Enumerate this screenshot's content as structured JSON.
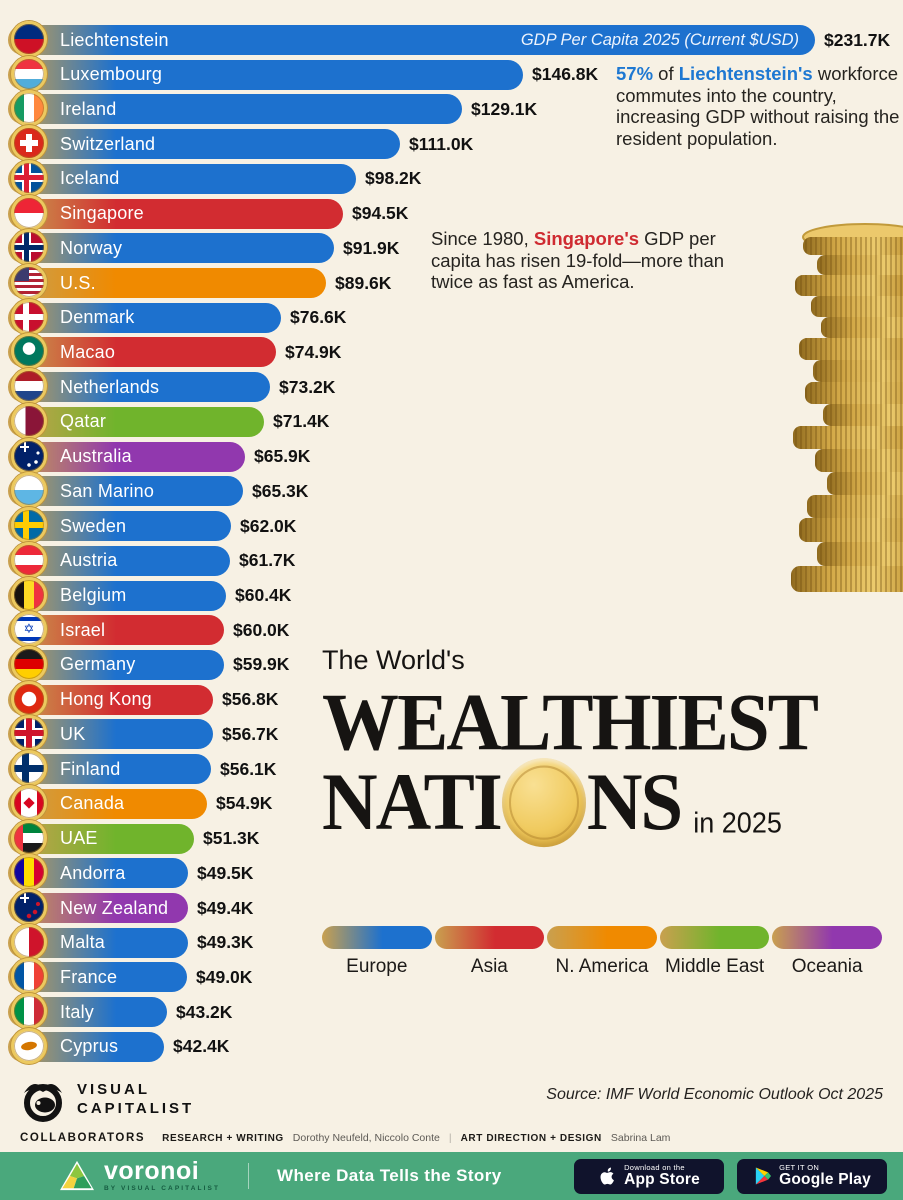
{
  "header": {
    "axis_label": "GDP Per Capita 2025 (Current $USD)"
  },
  "colors": {
    "europe": "#1d71ce",
    "asia": "#d22c31",
    "namerica": "#f08a00",
    "mideast": "#70b42c",
    "oceania": "#9138ae",
    "bar_gold": "#c9a04f",
    "accent_blue": "#1e78d2",
    "accent_red": "#cf2b31",
    "background": "#f7f1e4",
    "footer_green": "#4aa87c"
  },
  "chart_data": {
    "type": "bar",
    "title": "The World's Wealthiest Nations in 2025",
    "value_unit": "GDP per capita, thousand current USD",
    "max_value": 231.7,
    "legend_position": "bottom-right",
    "rows": [
      {
        "country": "Liechtenstein",
        "label": "$231.7K",
        "value": 231.7,
        "region": "europe",
        "flag": "li"
      },
      {
        "country": "Luxembourg",
        "label": "$146.8K",
        "value": 146.8,
        "region": "europe",
        "flag": "lu"
      },
      {
        "country": "Ireland",
        "label": "$129.1K",
        "value": 129.1,
        "region": "europe",
        "flag": "ie"
      },
      {
        "country": "Switzerland",
        "label": "$111.0K",
        "value": 111.0,
        "region": "europe",
        "flag": "ch"
      },
      {
        "country": "Iceland",
        "label": "$98.2K",
        "value": 98.2,
        "region": "europe",
        "flag": "is"
      },
      {
        "country": "Singapore",
        "label": "$94.5K",
        "value": 94.5,
        "region": "asia",
        "flag": "sg"
      },
      {
        "country": "Norway",
        "label": "$91.9K",
        "value": 91.9,
        "region": "europe",
        "flag": "no"
      },
      {
        "country": "U.S.",
        "label": "$89.6K",
        "value": 89.6,
        "region": "namerica",
        "flag": "us"
      },
      {
        "country": "Denmark",
        "label": "$76.6K",
        "value": 76.6,
        "region": "europe",
        "flag": "dk"
      },
      {
        "country": "Macao",
        "label": "$74.9K",
        "value": 74.9,
        "region": "asia",
        "flag": "mo"
      },
      {
        "country": "Netherlands",
        "label": "$73.2K",
        "value": 73.2,
        "region": "europe",
        "flag": "nl"
      },
      {
        "country": "Qatar",
        "label": "$71.4K",
        "value": 71.4,
        "region": "mideast",
        "flag": "qa"
      },
      {
        "country": "Australia",
        "label": "$65.9K",
        "value": 65.9,
        "region": "oceania",
        "flag": "au"
      },
      {
        "country": "San Marino",
        "label": "$65.3K",
        "value": 65.3,
        "region": "europe",
        "flag": "sm"
      },
      {
        "country": "Sweden",
        "label": "$62.0K",
        "value": 62.0,
        "region": "europe",
        "flag": "se"
      },
      {
        "country": "Austria",
        "label": "$61.7K",
        "value": 61.7,
        "region": "europe",
        "flag": "at"
      },
      {
        "country": "Belgium",
        "label": "$60.4K",
        "value": 60.4,
        "region": "europe",
        "flag": "be"
      },
      {
        "country": "Israel",
        "label": "$60.0K",
        "value": 60.0,
        "region": "asia",
        "flag": "il"
      },
      {
        "country": "Germany",
        "label": "$59.9K",
        "value": 59.9,
        "region": "europe",
        "flag": "de"
      },
      {
        "country": "Hong Kong",
        "label": "$56.8K",
        "value": 56.8,
        "region": "asia",
        "flag": "hk"
      },
      {
        "country": "UK",
        "label": "$56.7K",
        "value": 56.7,
        "region": "europe",
        "flag": "gb"
      },
      {
        "country": "Finland",
        "label": "$56.1K",
        "value": 56.1,
        "region": "europe",
        "flag": "fi"
      },
      {
        "country": "Canada",
        "label": "$54.9K",
        "value": 54.9,
        "region": "namerica",
        "flag": "ca"
      },
      {
        "country": "UAE",
        "label": "$51.3K",
        "value": 51.3,
        "region": "mideast",
        "flag": "ae"
      },
      {
        "country": "Andorra",
        "label": "$49.5K",
        "value": 49.5,
        "region": "europe",
        "flag": "ad"
      },
      {
        "country": "New Zealand",
        "label": "$49.4K",
        "value": 49.4,
        "region": "oceania",
        "flag": "nz"
      },
      {
        "country": "Malta",
        "label": "$49.3K",
        "value": 49.3,
        "region": "europe",
        "flag": "mt"
      },
      {
        "country": "France",
        "label": "$49.0K",
        "value": 49.0,
        "region": "europe",
        "flag": "fr"
      },
      {
        "country": "Italy",
        "label": "$43.2K",
        "value": 43.2,
        "region": "europe",
        "flag": "it"
      },
      {
        "country": "Cyprus",
        "label": "$42.4K",
        "value": 42.4,
        "region": "europe",
        "flag": "cy"
      }
    ],
    "legend": [
      {
        "label": "Europe",
        "region": "europe"
      },
      {
        "label": "Asia",
        "region": "asia"
      },
      {
        "label": "N. America",
        "region": "namerica"
      },
      {
        "label": "Middle East",
        "region": "mideast"
      },
      {
        "label": "Oceania",
        "region": "oceania"
      }
    ]
  },
  "annotations": {
    "a1_pct": "57%",
    "a1_mid": " of ",
    "a1_country": "Liechtenstein's",
    "a1_rest": " workforce commutes into the country, increasing GDP without raising the resident population.",
    "a2_pre": "Since 1980, ",
    "a2_country": "Singapore's",
    "a2_rest": " GDP per capita has risen 19-fold—more than twice as fast as America."
  },
  "title": {
    "small": "The World's",
    "line1": "WEALTHIEST",
    "line2a": "NATI",
    "line2b": "NS",
    "suffix": "in 2025"
  },
  "source": "Source: IMF World Economic Outlook Oct 2025",
  "collaborators": {
    "label": "COLLABORATORS",
    "role1": "RESEARCH + WRITING",
    "names1": "Dorothy Neufeld, Niccolo Conte",
    "sep": "|",
    "role2": "ART DIRECTION + DESIGN",
    "names2": "Sabrina Lam"
  },
  "brand": {
    "line1": "VISUAL",
    "line2": "CAPITALIST"
  },
  "footer": {
    "app_name": "voronoi",
    "by_line": "BY VISUAL CAPITALIST",
    "tagline": "Where Data Tells the Story",
    "badges": [
      {
        "line1": "Download on the",
        "line2": "App Store"
      },
      {
        "line1": "GET IT ON",
        "line2": "Google Play"
      }
    ]
  }
}
